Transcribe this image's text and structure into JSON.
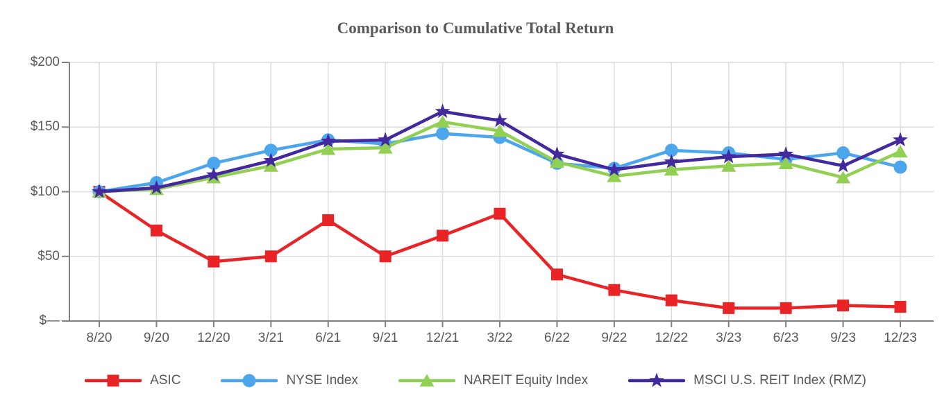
{
  "title": "Comparison to Cumulative Total Return",
  "colors": {
    "asic_red": "#E92427",
    "nyse_blue": "#4CA6EC",
    "nareit_green": "#91D052",
    "msci_purple": "#43289E",
    "grid": "#DCDCDC",
    "axis": "#808080",
    "text": "#595959"
  },
  "chart_data": {
    "type": "line",
    "title": "Comparison to Cumulative Total Return",
    "xlabel": "",
    "ylabel": "",
    "ylim": [
      0,
      200
    ],
    "grid": true,
    "legend_position": "bottom",
    "categories": [
      "8/20",
      "9/20",
      "12/20",
      "3/21",
      "6/21",
      "9/21",
      "12/21",
      "3/22",
      "6/22",
      "9/22",
      "12/22",
      "3/23",
      "6/23",
      "9/23",
      "12/23"
    ],
    "yticks": {
      "values": [
        0,
        50,
        100,
        150,
        200
      ],
      "labels": [
        "$—",
        "$50",
        "$100",
        "$150",
        "$200"
      ]
    },
    "series": [
      {
        "name": "ASIC",
        "marker": "square",
        "color": "#E92427",
        "values": [
          100,
          70,
          46,
          50,
          78,
          50,
          66,
          83,
          36,
          24,
          16,
          10,
          10,
          12,
          11
        ]
      },
      {
        "name": "NYSE Index",
        "marker": "circle",
        "color": "#4CA6EC",
        "values": [
          100,
          107,
          122,
          132,
          140,
          137,
          145,
          142,
          122,
          118,
          132,
          130,
          125,
          130,
          119
        ]
      },
      {
        "name": "NAREIT Equity Index",
        "marker": "triangle",
        "color": "#91D052",
        "values": [
          100,
          102,
          111,
          120,
          133,
          134,
          154,
          147,
          123,
          112,
          117,
          120,
          122,
          111,
          131
        ]
      },
      {
        "name": "MSCI U.S. REIT Index (RMZ)",
        "marker": "star",
        "color": "#43289E",
        "values": [
          100,
          103,
          113,
          124,
          139,
          140,
          162,
          155,
          129,
          117,
          123,
          127,
          129,
          120,
          140
        ]
      }
    ]
  }
}
